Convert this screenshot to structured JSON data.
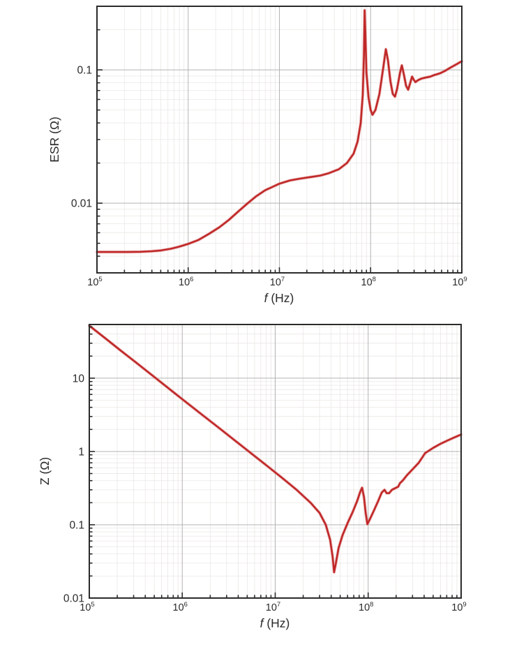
{
  "page": {
    "background": "#ffffff"
  },
  "style": {
    "curve_color": "#c02828",
    "curve_halo": "#e08a8a",
    "grid_major": "#b3b3b3",
    "grid_minor": "#eae8e5",
    "frame_color": "#2b2b2b",
    "text_color": "#2a2a2a"
  },
  "chart_data": [
    {
      "id": "esr",
      "type": "line",
      "title": "",
      "xlabel": {
        "italic": "f",
        "rest": " (Hz)"
      },
      "ylabel": "ESR (Ω)",
      "xlim": [
        100000,
        1000000000
      ],
      "ylim": [
        0.003,
        0.3
      ],
      "grid": "log-log, major + minor gridlines",
      "legend": "none",
      "x_ticks": [
        {
          "base": "10",
          "exp": "5",
          "v": 100000
        },
        {
          "base": "10",
          "exp": "6",
          "v": 1000000
        },
        {
          "base": "10",
          "exp": "7",
          "v": 10000000
        },
        {
          "base": "10",
          "exp": "8",
          "v": 100000000
        },
        {
          "base": "10",
          "exp": "9",
          "v": 1000000000
        }
      ],
      "y_ticks": [
        {
          "label": "0.1",
          "v": 0.1
        },
        {
          "label": "0.01",
          "v": 0.01
        }
      ],
      "series": [
        {
          "name": "ESR",
          "points": [
            [
              100000,
              0.0043
            ],
            [
              130000,
              0.0043
            ],
            [
              170000,
              0.0043
            ],
            [
              220000,
              0.0043
            ],
            [
              300000,
              0.00432
            ],
            [
              400000,
              0.00436
            ],
            [
              500000,
              0.00442
            ],
            [
              650000,
              0.00455
            ],
            [
              800000,
              0.00472
            ],
            [
              1000000,
              0.00495
            ],
            [
              1300000,
              0.0053
            ],
            [
              1700000,
              0.0059
            ],
            [
              2200000,
              0.0066
            ],
            [
              2800000,
              0.0075
            ],
            [
              3500000,
              0.0086
            ],
            [
              4500000,
              0.01
            ],
            [
              5500000,
              0.0112
            ],
            [
              7000000,
              0.0125
            ],
            [
              8500000,
              0.0133
            ],
            [
              10000000,
              0.014
            ],
            [
              13000000,
              0.0148
            ],
            [
              17000000,
              0.0153
            ],
            [
              22000000,
              0.0157
            ],
            [
              28000000,
              0.0161
            ],
            [
              35000000,
              0.0168
            ],
            [
              45000000,
              0.018
            ],
            [
              55000000,
              0.02
            ],
            [
              65000000,
              0.0235
            ],
            [
              72000000,
              0.029
            ],
            [
              78000000,
              0.04
            ],
            [
              82000000,
              0.065
            ],
            [
              84500000,
              0.13
            ],
            [
              86000000,
              0.28
            ],
            [
              87500000,
              0.19
            ],
            [
              90000000,
              0.095
            ],
            [
              95000000,
              0.062
            ],
            [
              100000000,
              0.05
            ],
            [
              105000000,
              0.046
            ],
            [
              113000000,
              0.05
            ],
            [
              125000000,
              0.066
            ],
            [
              138000000,
              0.105
            ],
            [
              147000000,
              0.143
            ],
            [
              155000000,
              0.118
            ],
            [
              165000000,
              0.082
            ],
            [
              175000000,
              0.066
            ],
            [
              185000000,
              0.063
            ],
            [
              195000000,
              0.072
            ],
            [
              210000000,
              0.095
            ],
            [
              220000000,
              0.108
            ],
            [
              232000000,
              0.092
            ],
            [
              245000000,
              0.076
            ],
            [
              258000000,
              0.071
            ],
            [
              272000000,
              0.08
            ],
            [
              285000000,
              0.089
            ],
            [
              298000000,
              0.084
            ],
            [
              310000000,
              0.081
            ],
            [
              330000000,
              0.0835
            ],
            [
              360000000,
              0.086
            ],
            [
              400000000,
              0.0875
            ],
            [
              450000000,
              0.089
            ],
            [
              500000000,
              0.0915
            ],
            [
              570000000,
              0.094
            ],
            [
              650000000,
              0.098
            ],
            [
              750000000,
              0.104
            ],
            [
              870000000,
              0.11
            ],
            [
              1000000000,
              0.116
            ]
          ]
        }
      ]
    },
    {
      "id": "z",
      "type": "line",
      "title": "",
      "xlabel": {
        "italic": "f",
        "rest": " (Hz)"
      },
      "ylabel": "Z (Ω)",
      "xlim": [
        100000,
        1000000000
      ],
      "ylim": [
        0.01,
        54
      ],
      "grid": "log-log, major + minor gridlines",
      "legend": "none",
      "x_ticks": [
        {
          "base": "10",
          "exp": "5",
          "v": 100000
        },
        {
          "base": "10",
          "exp": "6",
          "v": 1000000
        },
        {
          "base": "10",
          "exp": "7",
          "v": 10000000
        },
        {
          "base": "10",
          "exp": "8",
          "v": 100000000
        },
        {
          "base": "10",
          "exp": "9",
          "v": 1000000000
        }
      ],
      "y_ticks": [
        {
          "label": "10",
          "v": 10
        },
        {
          "label": "1",
          "v": 1
        },
        {
          "label": "0.1",
          "v": 0.1
        },
        {
          "label": "0.01",
          "v": 0.01
        }
      ],
      "series": [
        {
          "name": "Z",
          "points": [
            [
              100000,
              52
            ],
            [
              150000,
              34.7
            ],
            [
              220000,
              23.6
            ],
            [
              330000,
              15.8
            ],
            [
              500000,
              10.4
            ],
            [
              750000,
              6.9
            ],
            [
              1100000,
              4.7
            ],
            [
              1700000,
              3.05
            ],
            [
              2500000,
              2.08
            ],
            [
              3800000,
              1.37
            ],
            [
              5500000,
              0.945
            ],
            [
              8000000,
              0.65
            ],
            [
              12000000,
              0.43
            ],
            [
              17000000,
              0.3
            ],
            [
              24000000,
              0.2
            ],
            [
              30000000,
              0.145
            ],
            [
              35000000,
              0.1
            ],
            [
              39000000,
              0.062
            ],
            [
              41500000,
              0.036
            ],
            [
              43000000,
              0.0225
            ],
            [
              45000000,
              0.03
            ],
            [
              48000000,
              0.048
            ],
            [
              53000000,
              0.072
            ],
            [
              60000000,
              0.105
            ],
            [
              68000000,
              0.148
            ],
            [
              76000000,
              0.21
            ],
            [
              82000000,
              0.28
            ],
            [
              86000000,
              0.32
            ],
            [
              90000000,
              0.24
            ],
            [
              94000000,
              0.145
            ],
            [
              98000000,
              0.102
            ],
            [
              104000000,
              0.118
            ],
            [
              115000000,
              0.155
            ],
            [
              128000000,
              0.21
            ],
            [
              140000000,
              0.275
            ],
            [
              150000000,
              0.3
            ],
            [
              158000000,
              0.27
            ],
            [
              168000000,
              0.27
            ],
            [
              180000000,
              0.3
            ],
            [
              195000000,
              0.315
            ],
            [
              210000000,
              0.33
            ],
            [
              220000000,
              0.37
            ],
            [
              235000000,
              0.4
            ],
            [
              260000000,
              0.47
            ],
            [
              300000000,
              0.57
            ],
            [
              350000000,
              0.7
            ],
            [
              410000000,
              0.95
            ],
            [
              500000000,
              1.12
            ],
            [
              600000000,
              1.27
            ],
            [
              720000000,
              1.42
            ],
            [
              850000000,
              1.56
            ],
            [
              1000000000,
              1.7
            ]
          ]
        }
      ]
    }
  ]
}
